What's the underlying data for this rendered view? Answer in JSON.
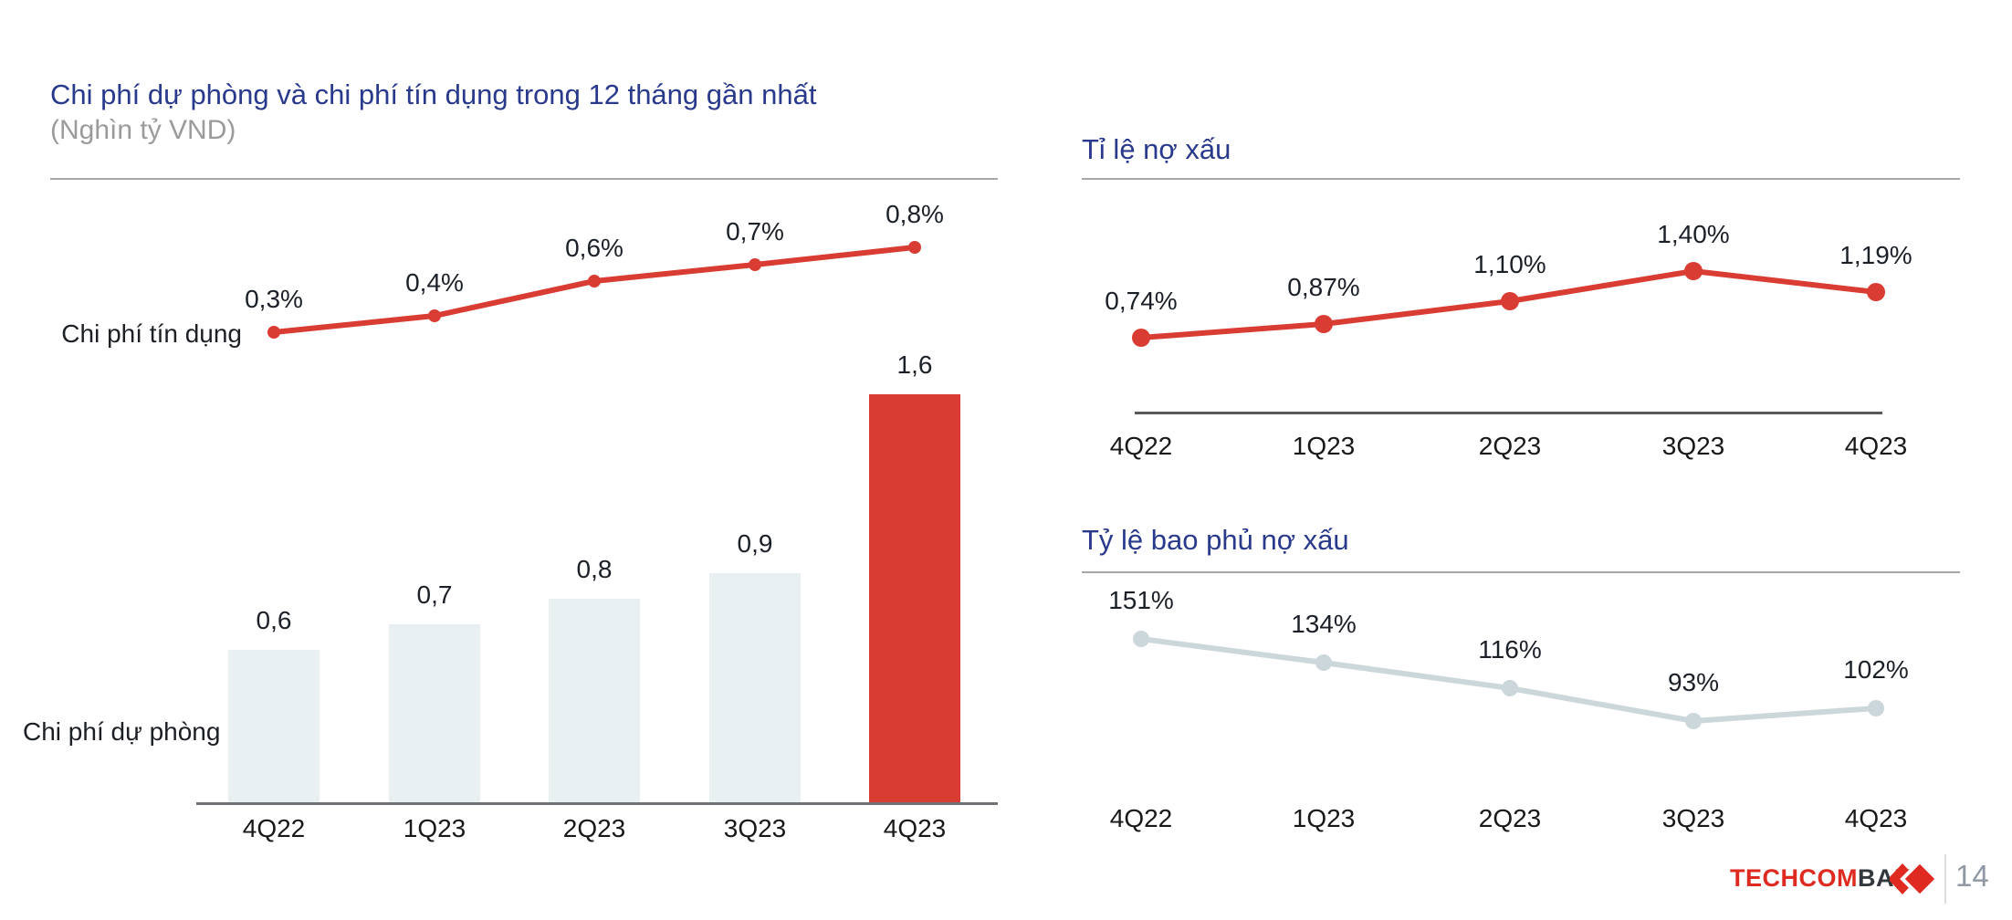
{
  "page": {
    "number": "14",
    "brand": {
      "part1": "TECHCOM",
      "part2": "BANK"
    }
  },
  "colors": {
    "red": "#d93c33",
    "navy": "#29398c",
    "bar_light": "#e9f0f2",
    "gray_line": "#ccd7db",
    "rule_gray": "#a6a6a6",
    "baseline_gray": "#707275",
    "axis_dark": "#58595b",
    "logo_red": "#de2a20",
    "logo_dark": "#33383e",
    "page_gray": "#8f98a3"
  },
  "chart_data": [
    {
      "id": "provision-and-credit-cost",
      "type": "bar",
      "title": "Chi phí dự phòng và chi phí tín dụng trong 12 tháng gần nhất",
      "subtitle": "(Nghìn tỷ VND)",
      "categories": [
        "4Q22",
        "1Q23",
        "2Q23",
        "3Q23",
        "4Q23"
      ],
      "xlabel": "",
      "ylabel": "Nghìn tỷ VND",
      "legend_position": "left-of-series",
      "grid": false,
      "series": [
        {
          "name": "Chi phí dự phòng",
          "kind": "bar",
          "values": [
            0.6,
            0.7,
            0.8,
            0.9,
            1.6
          ],
          "labels": [
            "0,6",
            "0,7",
            "0,8",
            "0,9",
            "1,6"
          ],
          "highlight_index": 4
        },
        {
          "name": "Chi phí tín dụng",
          "kind": "line",
          "values": [
            0.3,
            0.4,
            0.6,
            0.7,
            0.8
          ],
          "labels": [
            "0,3%",
            "0,4%",
            "0,6%",
            "0,7%",
            "0,8%"
          ]
        }
      ]
    },
    {
      "id": "npl-ratio",
      "type": "line",
      "title": "Tỉ lệ nợ xấu",
      "categories": [
        "4Q22",
        "1Q23",
        "2Q23",
        "3Q23",
        "4Q23"
      ],
      "grid": false,
      "series": [
        {
          "name": "Tỉ lệ nợ xấu",
          "kind": "line",
          "values": [
            0.74,
            0.87,
            1.1,
            1.4,
            1.19
          ],
          "labels": [
            "0,74%",
            "0,87%",
            "1,10%",
            "1,40%",
            "1,19%"
          ]
        }
      ]
    },
    {
      "id": "npl-coverage-ratio",
      "type": "line",
      "title": "Tỷ lệ bao phủ nợ xấu",
      "categories": [
        "4Q22",
        "1Q23",
        "2Q23",
        "3Q23",
        "4Q23"
      ],
      "grid": false,
      "series": [
        {
          "name": "Tỷ lệ bao phủ nợ xấu",
          "kind": "line",
          "values": [
            151,
            134,
            116,
            93,
            102
          ],
          "labels": [
            "151%",
            "134%",
            "116%",
            "93%",
            "102%"
          ]
        }
      ]
    }
  ]
}
